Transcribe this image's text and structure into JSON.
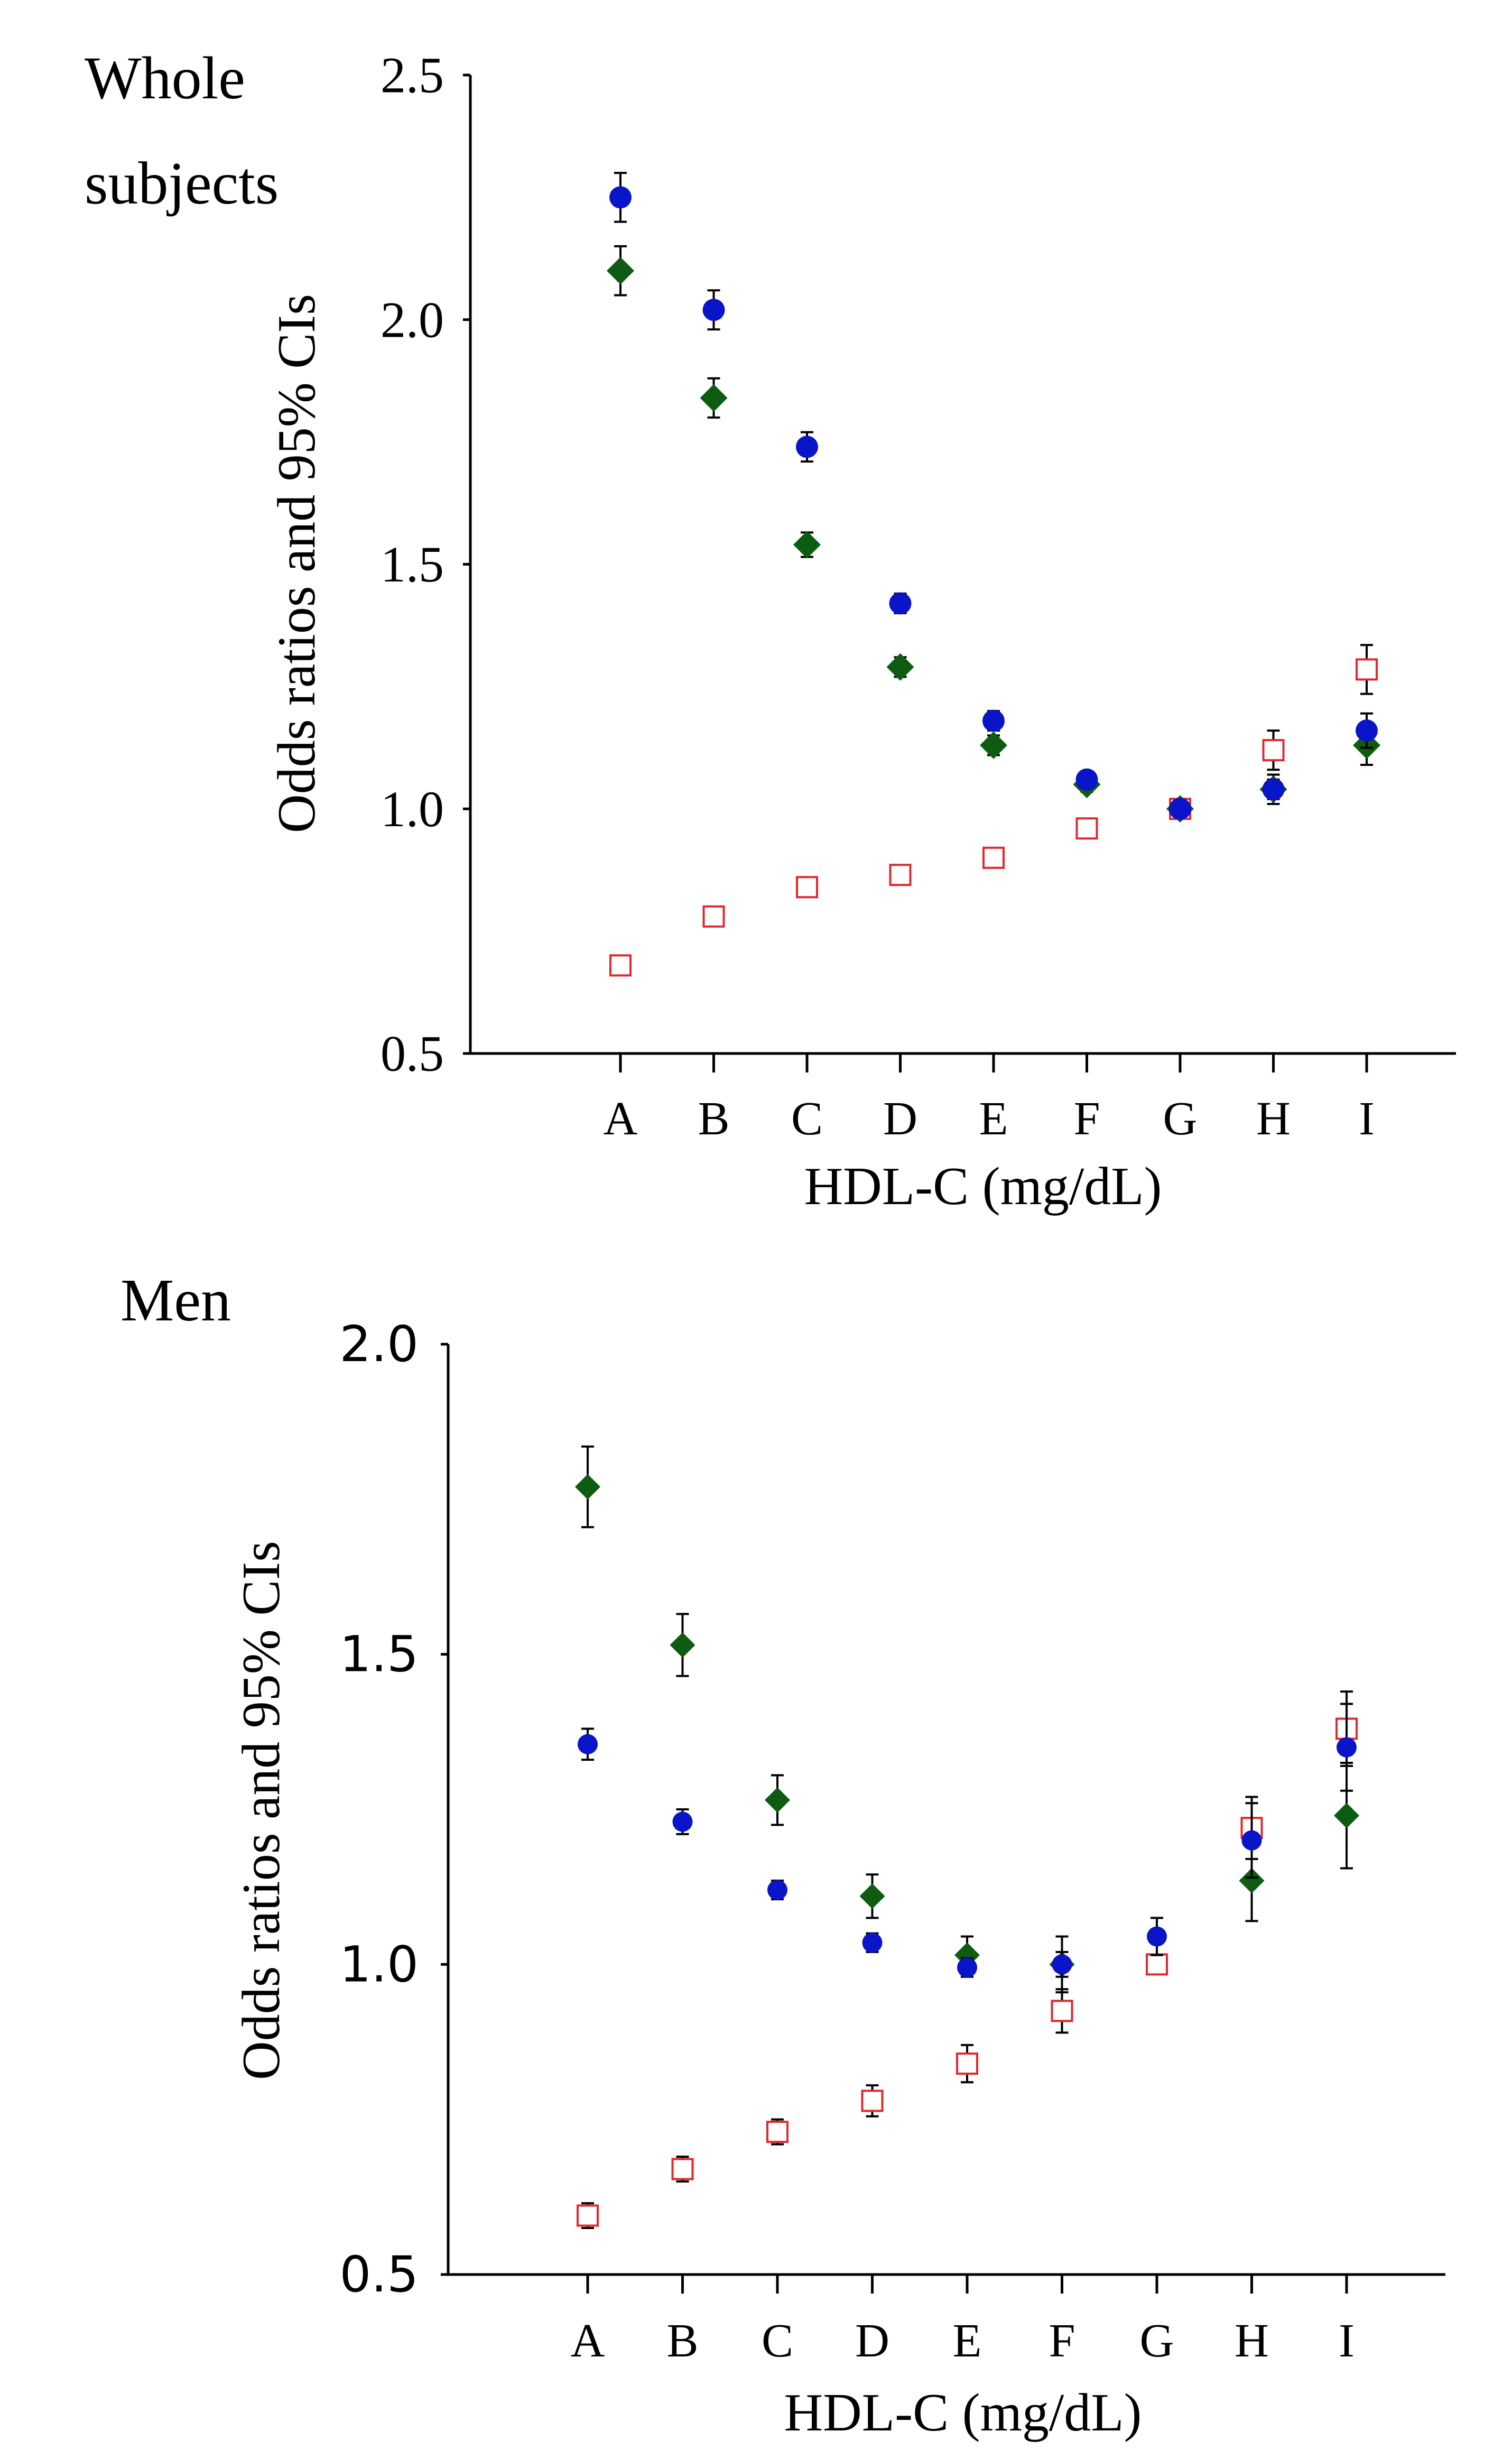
{
  "colors": {
    "circle": "#0a14c8",
    "diamond": "#0d5c12",
    "square": "#e0282e",
    "axis": "#000000",
    "errorbar": "#000000"
  },
  "chart_data": [
    {
      "type": "scatter",
      "title_lines": [
        "Whole",
        "subjects"
      ],
      "xlabel": "HDL-C (mg/dL)",
      "ylabel": "Odds ratios and 95% CIs",
      "categories": [
        "A",
        "B",
        "C",
        "D",
        "E",
        "F",
        "G",
        "H",
        "I"
      ],
      "ylim": [
        0.5,
        2.5
      ],
      "yticks": [
        0.5,
        1.0,
        1.5,
        2.0,
        2.5
      ],
      "ytick_labels": [
        "0.5",
        "1.0",
        "1.5",
        "2.0",
        "2.5"
      ],
      "series": [
        {
          "name": "circle",
          "marker": "filled-circle",
          "values": [
            2.25,
            2.02,
            1.74,
            1.42,
            1.18,
            1.06,
            1.0,
            1.04,
            1.16
          ],
          "err": [
            0.05,
            0.04,
            0.03,
            0.02,
            0.02,
            0.015,
            0,
            0.02,
            0.035
          ]
        },
        {
          "name": "diamond",
          "marker": "filled-diamond",
          "values": [
            2.1,
            1.84,
            1.54,
            1.29,
            1.13,
            1.05,
            1.0,
            1.04,
            1.13
          ],
          "err": [
            0.05,
            0.04,
            0.025,
            0.02,
            0.02,
            0.015,
            0,
            0.03,
            0.04
          ]
        },
        {
          "name": "square",
          "marker": "open-square",
          "values": [
            0.68,
            0.78,
            0.84,
            0.865,
            0.9,
            0.96,
            1.0,
            1.12,
            1.285
          ],
          "err": [
            0,
            0,
            0,
            0,
            0,
            0.01,
            0.01,
            0.04,
            0.05
          ]
        }
      ]
    },
    {
      "type": "scatter",
      "title_lines": [
        "Men"
      ],
      "xlabel": "HDL-C (mg/dL)",
      "ylabel": "Odds ratios and 95% CIs",
      "categories": [
        "A",
        "B",
        "C",
        "D",
        "E",
        "F",
        "G",
        "H",
        "I"
      ],
      "ylim": [
        0.5,
        2.0
      ],
      "yticks": [
        0.5,
        1.0,
        1.5,
        2.0
      ],
      "ytick_labels": [
        "0.5",
        "1.0",
        "1.5",
        "2.0"
      ],
      "series": [
        {
          "name": "circle",
          "marker": "filled-circle",
          "values": [
            1.355,
            1.23,
            1.12,
            1.035,
            0.995,
            1.0,
            1.045,
            1.2,
            1.35
          ],
          "err": [
            0.025,
            0.02,
            0.015,
            0.015,
            0.015,
            0.02,
            0.03,
            0.06,
            0.07
          ]
        },
        {
          "name": "diamond",
          "marker": "filled-diamond",
          "values": [
            1.77,
            1.515,
            1.265,
            1.11,
            1.015,
            1.0,
            null,
            1.135,
            1.24
          ],
          "err": [
            0.065,
            0.05,
            0.04,
            0.035,
            0.03,
            0.045,
            0,
            0.065,
            0.085
          ]
        },
        {
          "name": "square",
          "marker": "open-square",
          "values": [
            0.595,
            0.67,
            0.73,
            0.78,
            0.84,
            0.925,
            1.0,
            1.22,
            1.38
          ],
          "err": [
            0.02,
            0.02,
            0.02,
            0.025,
            0.03,
            0.035,
            0.01,
            0.05,
            0.06
          ]
        }
      ]
    }
  ]
}
